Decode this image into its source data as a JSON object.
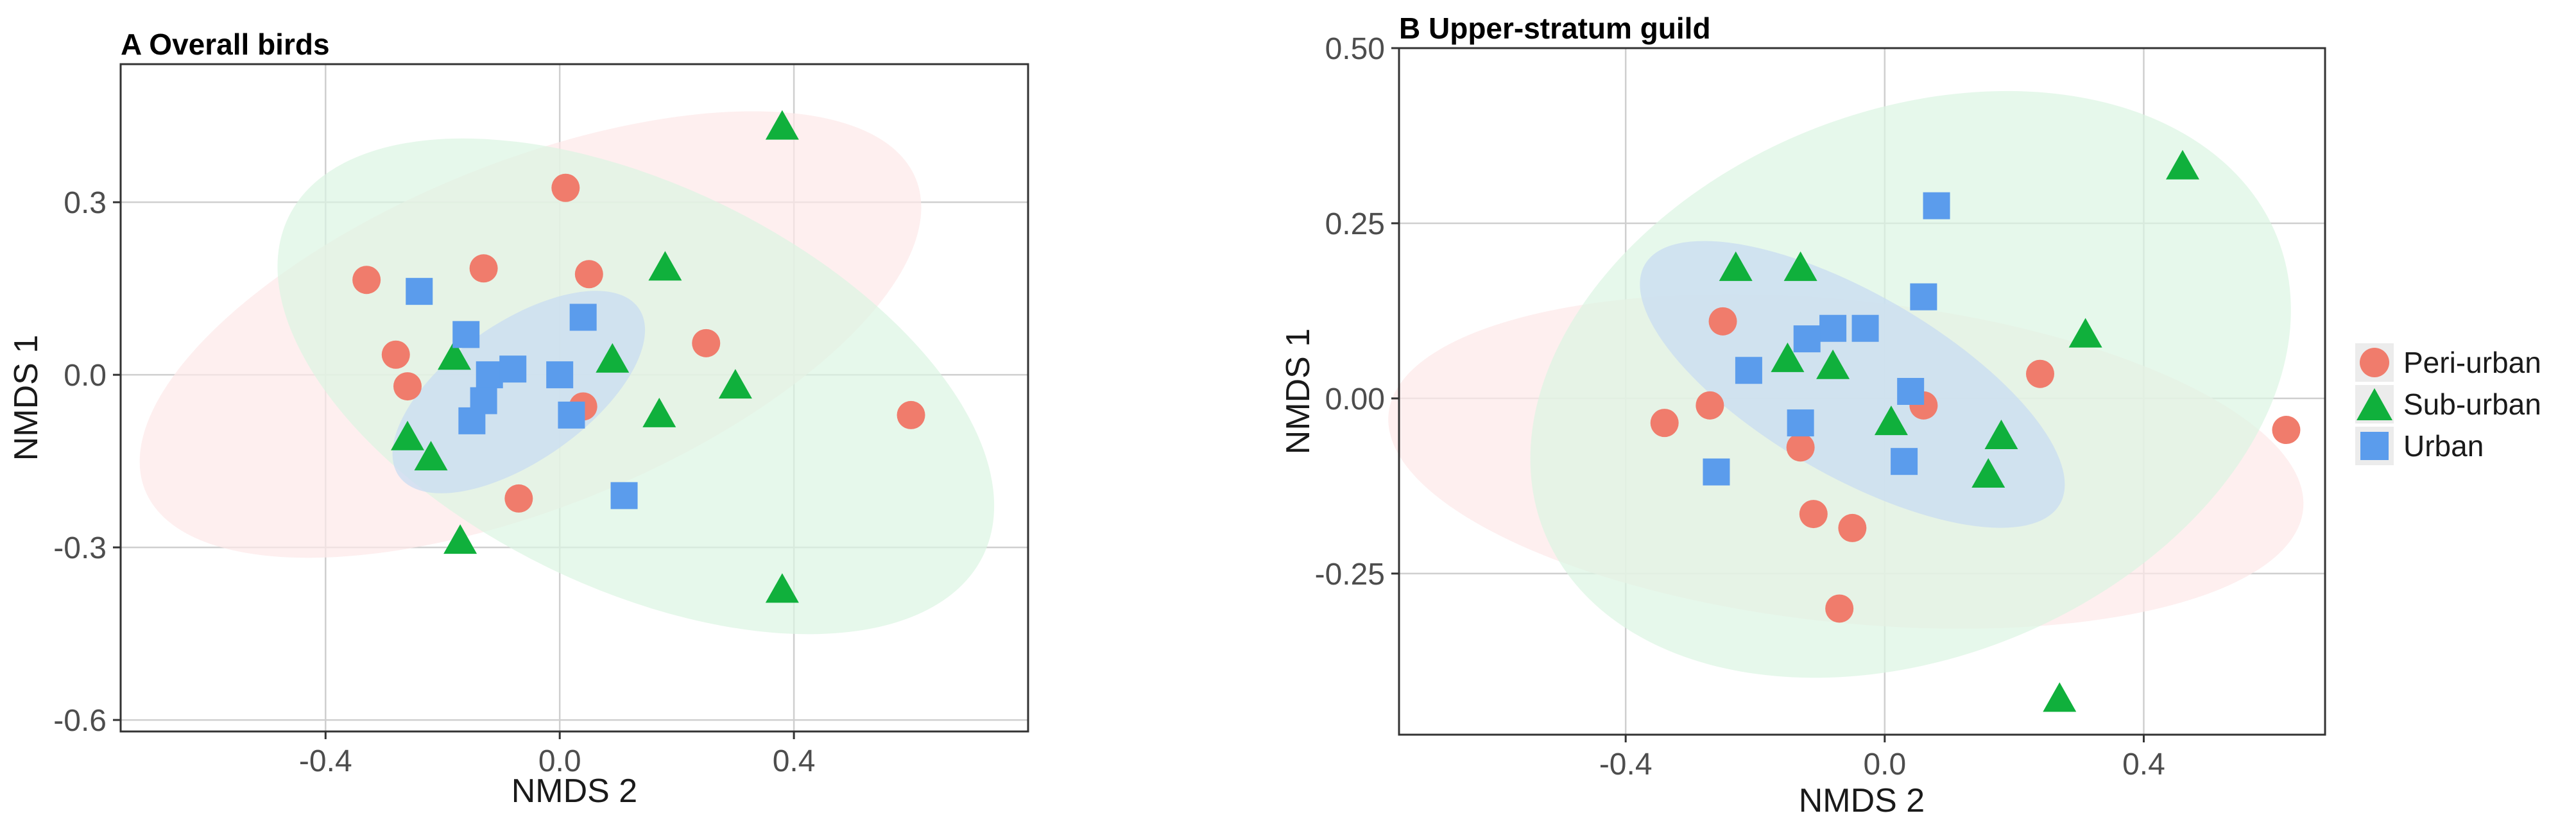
{
  "colors": {
    "peri_urban": "#f07c6c",
    "sub_urban": "#10b03c",
    "urban": "#5b9cec",
    "ellipse_peri": "#fde8e8",
    "ellipse_sub": "#dcf5e2",
    "ellipse_urban": "#c8dcf2"
  },
  "legend": {
    "items": [
      {
        "key": "peri_urban",
        "label": "Peri-urban",
        "shape": "circle"
      },
      {
        "key": "sub_urban",
        "label": "Sub-urban",
        "shape": "triangle"
      },
      {
        "key": "urban",
        "label": "Urban",
        "shape": "square"
      }
    ]
  },
  "chart_data": [
    {
      "type": "scatter",
      "title": "A Overall birds",
      "xlabel": "NMDS 2",
      "ylabel": "NMDS 1",
      "xlim": [
        -0.75,
        0.8
      ],
      "ylim": [
        -0.62,
        0.54
      ],
      "xticks": [
        -0.4,
        0.0,
        0.4
      ],
      "xtick_labels": [
        "-0.4",
        "0.0",
        "0.4"
      ],
      "yticks": [
        -0.6,
        -0.3,
        0.0,
        0.3
      ],
      "ytick_labels": [
        "-0.6",
        "-0.3",
        "0.0",
        "0.3"
      ],
      "grid": true,
      "ellipses": [
        {
          "group": "peri_urban",
          "cx": -0.05,
          "cy": 0.07,
          "rx": 0.71,
          "ry": 0.3,
          "angle": -22
        },
        {
          "group": "sub_urban",
          "cx": 0.13,
          "cy": -0.02,
          "rx": 0.66,
          "ry": 0.35,
          "angle": 26
        },
        {
          "group": "urban",
          "cx": -0.07,
          "cy": -0.03,
          "rx": 0.25,
          "ry": 0.12,
          "angle": -35
        }
      ],
      "series": [
        {
          "name": "Peri-urban",
          "key": "peri_urban",
          "shape": "circle",
          "x": [
            -0.33,
            -0.28,
            -0.26,
            -0.13,
            0.01,
            0.05,
            0.25,
            0.04,
            -0.07,
            0.6
          ],
          "y": [
            0.165,
            0.035,
            -0.02,
            0.185,
            0.325,
            0.175,
            0.055,
            -0.055,
            -0.215,
            -0.07
          ]
        },
        {
          "name": "Sub-urban",
          "key": "sub_urban",
          "shape": "triangle",
          "x": [
            0.38,
            0.18,
            0.09,
            -0.18,
            -0.26,
            -0.22,
            0.17,
            0.3,
            -0.17,
            0.38
          ],
          "y": [
            0.43,
            0.185,
            0.025,
            0.03,
            -0.11,
            -0.145,
            -0.07,
            -0.02,
            -0.29,
            -0.375
          ]
        },
        {
          "name": "Urban",
          "key": "urban",
          "shape": "square",
          "x": [
            -0.24,
            -0.16,
            -0.12,
            -0.08,
            -0.13,
            -0.15,
            0.0,
            0.04,
            0.02,
            0.11
          ],
          "y": [
            0.145,
            0.07,
            0.0,
            0.01,
            -0.045,
            -0.08,
            0.0,
            0.1,
            -0.07,
            -0.21
          ]
        }
      ]
    },
    {
      "type": "scatter",
      "title": "B Upper-stratum guild",
      "xlabel": "NMDS 2",
      "ylabel": "NMDS 1",
      "xlim": [
        -0.75,
        0.68
      ],
      "ylim": [
        -0.48,
        0.5
      ],
      "xticks": [
        -0.4,
        0.0,
        0.4
      ],
      "xtick_labels": [
        "-0.4",
        "0.0",
        "0.4"
      ],
      "yticks": [
        -0.25,
        0.0,
        0.25,
        0.5
      ],
      "ytick_labels": [
        "-0.25",
        "0.00",
        "0.25",
        "0.50"
      ],
      "grid": true,
      "ellipses": [
        {
          "group": "peri_urban",
          "cx": -0.06,
          "cy": -0.09,
          "rx": 0.71,
          "ry": 0.23,
          "angle": 6
        },
        {
          "group": "sub_urban",
          "cx": 0.04,
          "cy": 0.02,
          "rx": 0.61,
          "ry": 0.39,
          "angle": -22
        },
        {
          "group": "urban",
          "cx": -0.05,
          "cy": 0.02,
          "rx": 0.37,
          "ry": 0.13,
          "angle": 30
        }
      ],
      "series": [
        {
          "name": "Peri-urban",
          "key": "peri_urban",
          "shape": "circle",
          "x": [
            -0.25,
            -0.34,
            -0.27,
            -0.13,
            0.06,
            0.24,
            0.62,
            -0.11,
            -0.05,
            -0.07
          ],
          "y": [
            0.11,
            -0.035,
            -0.01,
            -0.07,
            -0.01,
            0.035,
            -0.045,
            -0.165,
            -0.185,
            -0.3
          ]
        },
        {
          "name": "Sub-urban",
          "key": "sub_urban",
          "shape": "triangle",
          "x": [
            0.46,
            -0.23,
            -0.13,
            -0.15,
            -0.08,
            0.31,
            0.01,
            0.18,
            0.16,
            0.27
          ],
          "y": [
            0.33,
            0.185,
            0.185,
            0.055,
            0.045,
            0.09,
            -0.035,
            -0.055,
            -0.11,
            -0.43
          ]
        },
        {
          "name": "Urban",
          "key": "urban",
          "shape": "square",
          "x": [
            0.08,
            0.06,
            -0.08,
            -0.12,
            -0.03,
            -0.21,
            0.04,
            -0.13,
            0.03,
            -0.26
          ],
          "y": [
            0.275,
            0.145,
            0.1,
            0.085,
            0.1,
            0.04,
            0.01,
            -0.035,
            -0.09,
            -0.105
          ]
        }
      ]
    }
  ]
}
